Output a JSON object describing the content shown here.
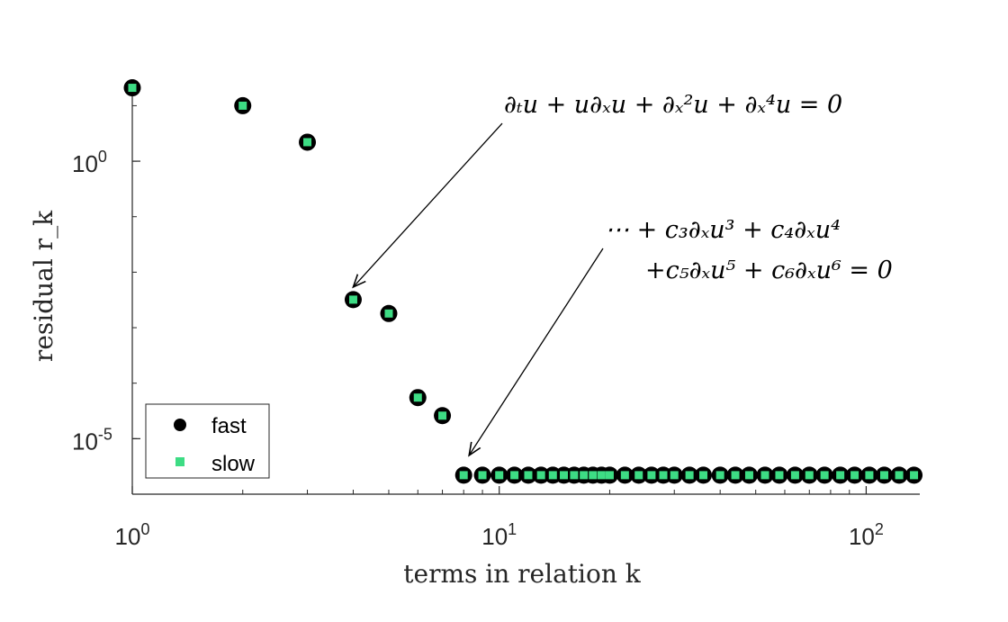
{
  "chart_data": {
    "type": "scatter",
    "xscale": "log",
    "yscale": "log",
    "xlim": [
      1,
      140
    ],
    "ylim": [
      1e-06,
      30
    ],
    "xlabel": "terms in relation k",
    "ylabel": "residual r_k",
    "x_ticks": [
      {
        "base": "10",
        "exp": "0",
        "value": 1
      },
      {
        "base": "10",
        "exp": "1",
        "value": 10
      },
      {
        "base": "10",
        "exp": "2",
        "value": 100
      }
    ],
    "y_ticks": [
      {
        "base": "10",
        "exp": "0",
        "value": 1
      },
      {
        "base": "10",
        "exp": "-5",
        "value": 1e-05
      }
    ],
    "colors": {
      "fast": "#000000",
      "slow": "#3ddc84"
    },
    "legend": {
      "placement": "bottom-left",
      "entries": [
        "fast",
        "slow"
      ]
    },
    "series": [
      {
        "name": "fast",
        "marker": "circle",
        "points": [
          [
            1,
            21
          ],
          [
            2,
            10
          ],
          [
            3,
            2.2
          ],
          [
            4,
            0.0032
          ],
          [
            5,
            0.0018
          ],
          [
            6,
            5.5e-05
          ],
          [
            7,
            2.6e-05
          ],
          [
            8,
            2.2e-06
          ],
          [
            9,
            2.2e-06
          ],
          [
            10,
            2.2e-06
          ],
          [
            11,
            2.2e-06
          ],
          [
            12,
            2.2e-06
          ],
          [
            13,
            2.2e-06
          ],
          [
            14,
            2.2e-06
          ],
          [
            15,
            2.2e-06
          ],
          [
            16,
            2.2e-06
          ],
          [
            17,
            2.2e-06
          ],
          [
            18,
            2.2e-06
          ],
          [
            19,
            2.2e-06
          ],
          [
            20,
            2.2e-06
          ],
          [
            22,
            2.2e-06
          ],
          [
            24,
            2.2e-06
          ],
          [
            26,
            2.2e-06
          ],
          [
            28,
            2.2e-06
          ],
          [
            30,
            2.2e-06
          ],
          [
            33,
            2.2e-06
          ],
          [
            36,
            2.2e-06
          ],
          [
            40,
            2.2e-06
          ],
          [
            44,
            2.2e-06
          ],
          [
            48,
            2.2e-06
          ],
          [
            53,
            2.2e-06
          ],
          [
            58,
            2.2e-06
          ],
          [
            64,
            2.2e-06
          ],
          [
            70,
            2.2e-06
          ],
          [
            77,
            2.2e-06
          ],
          [
            85,
            2.2e-06
          ],
          [
            93,
            2.2e-06
          ],
          [
            102,
            2.2e-06
          ],
          [
            112,
            2.2e-06
          ],
          [
            123,
            2.2e-06
          ],
          [
            135,
            2.2e-06
          ]
        ]
      },
      {
        "name": "slow",
        "marker": "square",
        "points": [
          [
            1,
            21
          ],
          [
            2,
            10
          ],
          [
            3,
            2.2
          ],
          [
            4,
            0.0032
          ],
          [
            5,
            0.0018
          ],
          [
            6,
            5.5e-05
          ],
          [
            7,
            2.6e-05
          ],
          [
            8,
            2.2e-06
          ],
          [
            9,
            2.2e-06
          ],
          [
            10,
            2.2e-06
          ],
          [
            11,
            2.2e-06
          ],
          [
            12,
            2.2e-06
          ],
          [
            13,
            2.2e-06
          ],
          [
            14,
            2.2e-06
          ],
          [
            15,
            2.2e-06
          ],
          [
            16,
            2.2e-06
          ],
          [
            17,
            2.2e-06
          ],
          [
            18,
            2.2e-06
          ],
          [
            19,
            2.2e-06
          ],
          [
            20,
            2.2e-06
          ],
          [
            22,
            2.2e-06
          ],
          [
            24,
            2.2e-06
          ],
          [
            26,
            2.2e-06
          ],
          [
            28,
            2.2e-06
          ],
          [
            30,
            2.2e-06
          ],
          [
            33,
            2.2e-06
          ],
          [
            36,
            2.2e-06
          ],
          [
            40,
            2.2e-06
          ],
          [
            44,
            2.2e-06
          ],
          [
            48,
            2.2e-06
          ],
          [
            53,
            2.2e-06
          ],
          [
            58,
            2.2e-06
          ],
          [
            64,
            2.2e-06
          ],
          [
            70,
            2.2e-06
          ],
          [
            77,
            2.2e-06
          ],
          [
            85,
            2.2e-06
          ],
          [
            93,
            2.2e-06
          ],
          [
            102,
            2.2e-06
          ],
          [
            112,
            2.2e-06
          ],
          [
            123,
            2.2e-06
          ],
          [
            135,
            2.2e-06
          ]
        ]
      }
    ],
    "annotations": [
      {
        "id": "ks",
        "lines": [
          "∂ₜu + u∂ₓu + ∂ₓ²u + ∂ₓ⁴u = 0"
        ],
        "arrow_to": [
          4,
          0.0032
        ]
      },
      {
        "id": "poly",
        "lines": [
          "⋯ + c₃∂ₓu³ + c₄∂ₓu⁴",
          "+c₅∂ₓu⁵ + c₆∂ₓu⁶ = 0"
        ],
        "arrow_to": [
          8,
          2.2e-06
        ]
      }
    ]
  }
}
